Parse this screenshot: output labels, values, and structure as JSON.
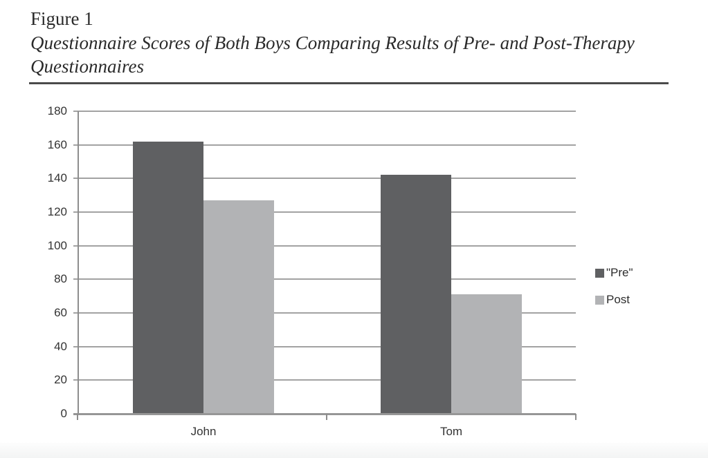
{
  "figure": {
    "label": "Figure 1",
    "caption_lines": [
      "Questionnaire Scores of Both Boys Comparing Results of Pre- and Post-Therapy",
      "Questionnaires"
    ]
  },
  "chart_data": {
    "type": "bar",
    "title": "",
    "xlabel": "",
    "ylabel": "",
    "categories": [
      "John",
      "Tom"
    ],
    "series": [
      {
        "name": "\"Pre\"",
        "color": "#5f6062",
        "values": [
          162,
          142
        ]
      },
      {
        "name": "Post",
        "color": "#b2b3b5",
        "values": [
          127,
          71
        ]
      }
    ],
    "ylim": [
      0,
      180
    ],
    "yticks": [
      0,
      20,
      40,
      60,
      80,
      100,
      120,
      140,
      160,
      180
    ],
    "grid": "horizontal",
    "legend_position": "right"
  },
  "colors": {
    "pre_bar": "#5f6062",
    "post_bar": "#b2b3b5",
    "gridline": "#a2a2a2",
    "rule": "#4b4b4b"
  }
}
